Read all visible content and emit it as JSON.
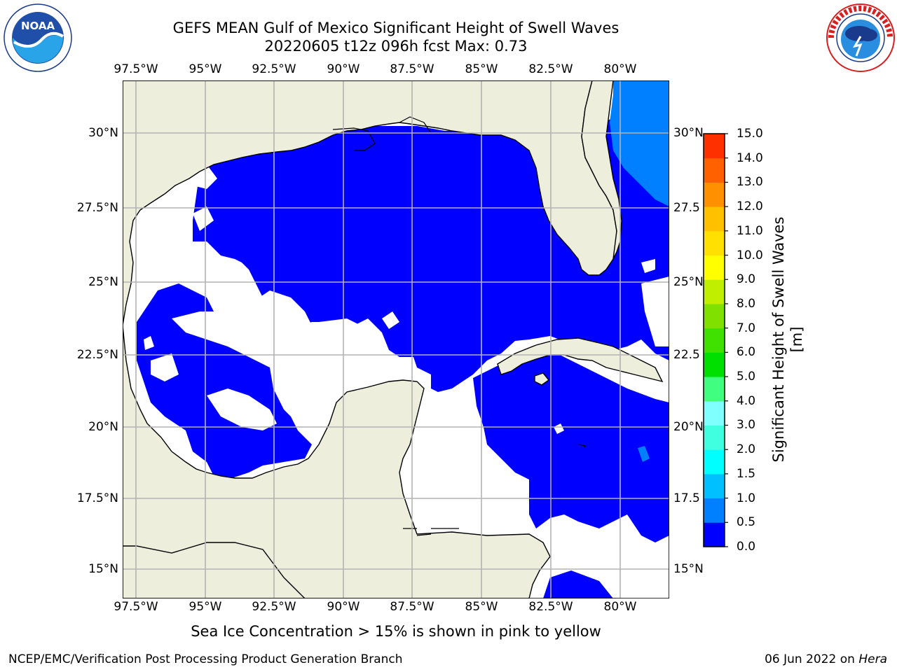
{
  "title": {
    "line1": "GEFS MEAN Gulf of Mexico Significant Height of Swell Waves",
    "line2": "20220605 t12z 096h fcst   Max: 0.73"
  },
  "map": {
    "lon_labels": [
      "97.5°W",
      "95°W",
      "92.5°W",
      "90°W",
      "87.5°W",
      "85°W",
      "82.5°W",
      "80°W"
    ],
    "lat_labels": [
      "30°N",
      "27.5°N",
      "25°N",
      "22.5°N",
      "20°N",
      "17.5°N",
      "15°N"
    ],
    "lat_labels_right": [
      "30°N",
      "27.5",
      "25°N",
      "22.5",
      "20°N",
      "17.5",
      "15°N"
    ],
    "land_color": "#eeeedc",
    "water_color": "#ffffff",
    "swell_low_color": "#0000ff",
    "swell_mid_color": "#0080ff"
  },
  "colorbar": {
    "label": "Significant Height of Swell Waves [m]",
    "ticks": [
      "0.0",
      "0.5",
      "1.0",
      "1.5",
      "2.0",
      "3.0",
      "4.0",
      "5.0",
      "6.0",
      "7.0",
      "8.0",
      "9.0",
      "10.0",
      "11.0",
      "12.0",
      "13.0",
      "14.0",
      "15.0"
    ],
    "colors": [
      "#0000ff",
      "#0080ff",
      "#00c0ff",
      "#00ffff",
      "#40ffe0",
      "#80ffff",
      "#40ff80",
      "#00e000",
      "#40e000",
      "#80e000",
      "#c0f000",
      "#ffff00",
      "#ffe000",
      "#ffc000",
      "#ff9000",
      "#ff6000",
      "#ff3000"
    ]
  },
  "caption": "Sea Ice Concentration > 15% is shown in pink to yellow",
  "footer": {
    "left": "NCEP/EMC/Verification Post Processing Product Generation Branch",
    "right_date": "06 Jun 2022 on ",
    "right_host": "Hera"
  },
  "logos": {
    "noaa_text": "NOAA",
    "noaa_ring": "NATIONAL OCEANIC AND ATMOSPHERIC ADMINISTRATION · U.S. DEPARTMENT OF COMMERCE",
    "nws_ring": "NATIONAL WEATHER SERVICE"
  }
}
